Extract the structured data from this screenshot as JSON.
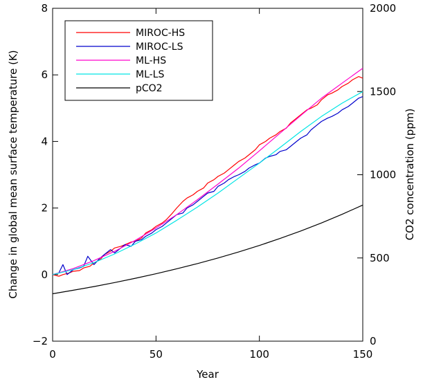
{
  "chart_data": {
    "type": "line",
    "xlabel": "Year",
    "ylabel": "Change in global mean surface temperature (K)",
    "ylabel_right": "CO2 concentration (ppm)",
    "xlim": [
      0,
      150
    ],
    "ylim": [
      -2,
      8
    ],
    "ylim_right": [
      0,
      2000
    ],
    "x_ticks": [
      0,
      50,
      100,
      150
    ],
    "y_ticks": [
      -2,
      0,
      2,
      4,
      6,
      8
    ],
    "y_ticks_right": [
      0,
      500,
      1000,
      1500,
      2000
    ],
    "x_tick_labels": [
      "0",
      "50",
      "100",
      "150"
    ],
    "y_tick_labels": [
      "−2",
      "0",
      "2",
      "4",
      "6",
      "8"
    ],
    "y_tick_labels_right": [
      "0",
      "500",
      "1000",
      "1500",
      "2000"
    ],
    "legend_position": "top-left",
    "grid": false,
    "series": [
      {
        "name": "MIROC-HS",
        "color": "#ff0000",
        "axis": "left",
        "x": [
          0,
          3,
          5,
          8,
          10,
          13,
          15,
          18,
          20,
          23,
          25,
          28,
          30,
          33,
          35,
          38,
          40,
          43,
          45,
          48,
          50,
          53,
          55,
          58,
          60,
          63,
          65,
          68,
          70,
          73,
          75,
          78,
          80,
          83,
          85,
          88,
          90,
          93,
          95,
          98,
          100,
          103,
          105,
          108,
          110,
          113,
          115,
          118,
          120,
          123,
          125,
          128,
          130,
          133,
          135,
          138,
          140,
          143,
          145,
          148,
          150
        ],
        "y": [
          0.0,
          -0.05,
          0.0,
          0.05,
          0.1,
          0.12,
          0.2,
          0.25,
          0.35,
          0.45,
          0.6,
          0.7,
          0.8,
          0.85,
          0.9,
          0.98,
          1.0,
          1.1,
          1.25,
          1.35,
          1.45,
          1.55,
          1.65,
          1.85,
          2.0,
          2.2,
          2.3,
          2.4,
          2.5,
          2.6,
          2.75,
          2.85,
          2.95,
          3.05,
          3.15,
          3.3,
          3.4,
          3.5,
          3.6,
          3.75,
          3.9,
          4.0,
          4.1,
          4.2,
          4.3,
          4.4,
          4.55,
          4.7,
          4.8,
          4.95,
          5.0,
          5.1,
          5.25,
          5.4,
          5.45,
          5.55,
          5.65,
          5.75,
          5.85,
          5.95,
          5.9
        ]
      },
      {
        "name": "MIROC-LS",
        "color": "#0000cc",
        "axis": "left",
        "x": [
          0,
          3,
          5,
          7,
          10,
          13,
          15,
          17,
          20,
          23,
          25,
          28,
          30,
          33,
          35,
          38,
          40,
          43,
          45,
          48,
          50,
          53,
          55,
          58,
          60,
          63,
          65,
          68,
          70,
          73,
          75,
          78,
          80,
          83,
          85,
          88,
          90,
          93,
          95,
          98,
          100,
          103,
          105,
          108,
          110,
          113,
          115,
          118,
          120,
          123,
          125,
          128,
          130,
          133,
          135,
          138,
          140,
          143,
          145,
          148,
          150
        ],
        "y": [
          0.0,
          0.05,
          0.3,
          0.0,
          0.15,
          0.2,
          0.25,
          0.55,
          0.3,
          0.5,
          0.6,
          0.75,
          0.65,
          0.8,
          0.9,
          0.85,
          1.0,
          1.05,
          1.15,
          1.25,
          1.35,
          1.45,
          1.55,
          1.7,
          1.8,
          1.85,
          2.0,
          2.1,
          2.2,
          2.35,
          2.45,
          2.5,
          2.65,
          2.75,
          2.85,
          2.95,
          3.0,
          3.1,
          3.2,
          3.3,
          3.35,
          3.5,
          3.55,
          3.6,
          3.7,
          3.75,
          3.85,
          4.0,
          4.1,
          4.2,
          4.35,
          4.5,
          4.6,
          4.7,
          4.75,
          4.85,
          4.95,
          5.05,
          5.15,
          5.3,
          5.35
        ]
      },
      {
        "name": "ML-HS",
        "color": "#ff00cc",
        "axis": "left",
        "x": [
          0,
          10,
          20,
          30,
          40,
          50,
          60,
          70,
          80,
          90,
          100,
          110,
          120,
          130,
          140,
          150
        ],
        "y": [
          0.0,
          0.18,
          0.42,
          0.7,
          1.03,
          1.4,
          1.8,
          2.25,
          2.72,
          3.2,
          3.72,
          4.25,
          4.78,
          5.3,
          5.75,
          6.2
        ]
      },
      {
        "name": "ML-LS",
        "color": "#00e5e5",
        "axis": "left",
        "x": [
          0,
          10,
          20,
          30,
          40,
          50,
          60,
          70,
          80,
          90,
          100,
          110,
          120,
          130,
          140,
          150
        ],
        "y": [
          0.0,
          0.15,
          0.36,
          0.62,
          0.92,
          1.25,
          1.63,
          2.03,
          2.45,
          2.9,
          3.35,
          3.82,
          4.3,
          4.75,
          5.15,
          5.5
        ]
      },
      {
        "name": "pCO2",
        "color": "#000000",
        "axis": "right",
        "x": [
          0,
          10,
          20,
          30,
          40,
          50,
          60,
          70,
          80,
          90,
          100,
          110,
          120,
          130,
          140,
          150
        ],
        "y": [
          285,
          306,
          328,
          352,
          378,
          405,
          435,
          466,
          500,
          536,
          575,
          617,
          662,
          710,
          762,
          818
        ]
      }
    ]
  }
}
